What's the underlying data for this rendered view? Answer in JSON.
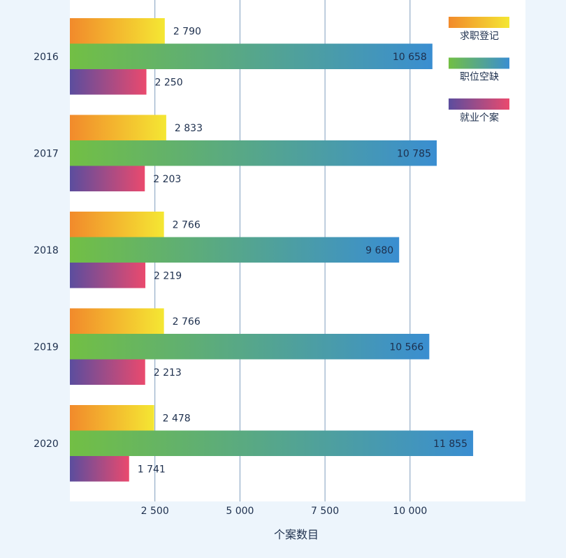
{
  "chart_data": {
    "type": "bar",
    "orientation": "horizontal",
    "categories": [
      "2016",
      "2017",
      "2018",
      "2019",
      "2020"
    ],
    "series": [
      {
        "name": "求职登记",
        "values": [
          2790,
          2833,
          2766,
          2766,
          2478
        ],
        "labels": [
          "2 790",
          "2 833",
          "2 766",
          "2 766",
          "2 478"
        ],
        "colors": [
          "#f28a2b",
          "#f4e733"
        ]
      },
      {
        "name": "职位空缺",
        "values": [
          10658,
          10785,
          9680,
          10566,
          11855
        ],
        "labels": [
          "10 658",
          "10 785",
          "9 680",
          "10 566",
          "11 855"
        ],
        "colors": [
          "#72bf44",
          "#3a8ed1"
        ]
      },
      {
        "name": "就业个案",
        "values": [
          2250,
          2203,
          2219,
          2213,
          1741
        ],
        "labels": [
          "2 250",
          "2 203",
          "2 219",
          "2 213",
          "1 741"
        ],
        "colors": [
          "#5b4d9e",
          "#ea4a6e"
        ]
      }
    ],
    "x_ticks": [
      2500,
      5000,
      7500,
      10000
    ],
    "x_tick_labels": [
      "2 500",
      "5 000",
      "7 500",
      "10  000"
    ],
    "xlim": [
      0,
      13500
    ],
    "xlabel": "个案数目",
    "legend_position": "top-right",
    "grid": "vertical"
  }
}
